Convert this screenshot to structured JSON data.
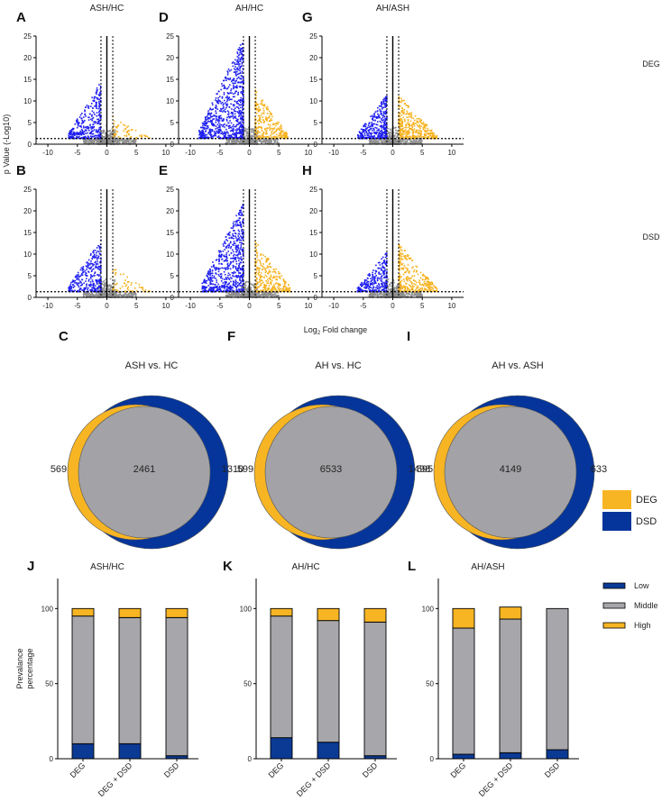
{
  "figure": {
    "volcano_ylabel": "p Value (-Log10)",
    "volcano_xlabel_prefix": "Log",
    "volcano_xlabel_sub": "2",
    "volcano_xlabel_suffix": " Fold change",
    "row_labels": [
      "DEG",
      "DSD"
    ]
  },
  "colors": {
    "down": "#1f1ff0",
    "up": "#f6b21e",
    "ns": "#8f8f8f",
    "venn_deg": "#f8b523",
    "venn_dsd": "#05359a",
    "venn_overlap": "#a3a2a6",
    "bar_low": "#0b3a94",
    "bar_mid": "#a7a6aa",
    "bar_high": "#f8b523"
  },
  "chart_data": [
    {
      "type": "scatter",
      "panel": "A",
      "title": "ASH/HC",
      "row": "DEG",
      "xlim": [
        -12,
        12
      ],
      "ylim": [
        0,
        25
      ],
      "xticks": [
        -10,
        -5,
        0,
        5,
        10
      ],
      "yticks": [
        0,
        5,
        10,
        15,
        20,
        25
      ],
      "fc_cut": [
        -1,
        1
      ],
      "p_cut": 1.3,
      "down": {
        "count": 1400,
        "xmin": -6.5,
        "ymax": 14
      },
      "up": {
        "count": 260,
        "xmax": 7.5,
        "ymax": 6
      }
    },
    {
      "type": "scatter",
      "panel": "D",
      "title": "AH/HC",
      "row": "DEG",
      "xlim": [
        -12,
        12
      ],
      "ylim": [
        0,
        25
      ],
      "xticks": [
        -10,
        -5,
        0,
        5,
        10
      ],
      "yticks": [
        0,
        5,
        10,
        15,
        20,
        25
      ],
      "fc_cut": [
        -1,
        1
      ],
      "p_cut": 1.3,
      "down": {
        "count": 3200,
        "xmin": -8.5,
        "ymax": 24
      },
      "up": {
        "count": 1100,
        "xmax": 6.5,
        "ymax": 12
      }
    },
    {
      "type": "scatter",
      "panel": "G",
      "title": "AH/ASH",
      "row": "DEG",
      "xlim": [
        -12,
        12
      ],
      "ylim": [
        0,
        25
      ],
      "xticks": [
        -10,
        -5,
        0,
        5,
        10
      ],
      "yticks": [
        0,
        5,
        10,
        15,
        20,
        25
      ],
      "fc_cut": [
        -1,
        1
      ],
      "p_cut": 1.3,
      "down": {
        "count": 1400,
        "xmin": -6,
        "ymax": 11
      },
      "up": {
        "count": 1500,
        "xmax": 7.5,
        "ymax": 11
      }
    },
    {
      "type": "scatter",
      "panel": "B",
      "title": "",
      "row": "DSD",
      "xlim": [
        -12,
        12
      ],
      "ylim": [
        0,
        25
      ],
      "xticks": [
        -10,
        -5,
        0,
        5,
        10
      ],
      "yticks": [
        0,
        5,
        10,
        15,
        20,
        25
      ],
      "fc_cut": [
        -1,
        1
      ],
      "p_cut": 1.3,
      "down": {
        "count": 1300,
        "xmin": -6.5,
        "ymax": 13
      },
      "up": {
        "count": 230,
        "xmax": 7.5,
        "ymax": 6.5
      }
    },
    {
      "type": "scatter",
      "panel": "E",
      "title": "",
      "row": "DSD",
      "xlim": [
        -12,
        12
      ],
      "ylim": [
        0,
        25
      ],
      "xticks": [
        -10,
        -5,
        0,
        5,
        10
      ],
      "yticks": [
        0,
        5,
        10,
        15,
        20,
        25
      ],
      "fc_cut": [
        -1,
        1
      ],
      "p_cut": 1.3,
      "down": {
        "count": 2600,
        "xmin": -8,
        "ymax": 22
      },
      "up": {
        "count": 1150,
        "xmax": 7,
        "ymax": 12.5
      }
    },
    {
      "type": "scatter",
      "panel": "H",
      "title": "",
      "row": "DSD",
      "xlim": [
        -12,
        12
      ],
      "ylim": [
        0,
        25
      ],
      "xticks": [
        -10,
        -5,
        0,
        5,
        10
      ],
      "yticks": [
        0,
        5,
        10,
        15,
        20,
        25
      ],
      "fc_cut": [
        -1,
        1
      ],
      "p_cut": 1.3,
      "down": {
        "count": 1100,
        "xmin": -6,
        "ymax": 10
      },
      "up": {
        "count": 1300,
        "xmax": 7.5,
        "ymax": 12
      }
    },
    {
      "type": "venn",
      "panel": "C",
      "title": "ASH vs. HC",
      "deg_only": 569,
      "overlap": 2461,
      "dsd_only": 1310
    },
    {
      "type": "venn",
      "panel": "F",
      "title": "AH vs. HC",
      "deg_only": 599,
      "overlap": 6533,
      "dsd_only": 1498
    },
    {
      "type": "venn",
      "panel": "I",
      "title": "AH vs. ASH",
      "deg_only": 595,
      "overlap": 4149,
      "dsd_only": 633
    },
    {
      "type": "bar",
      "stacked": true,
      "panel": "J",
      "title": "ASH/HC",
      "ylabel": "Prevalance percentage",
      "ylim": [
        0,
        120
      ],
      "yticks": [
        0,
        50,
        100
      ],
      "categories": [
        "DEG",
        "DEG + DSD",
        "DSD"
      ],
      "series": [
        {
          "name": "Low",
          "values": [
            10,
            10,
            2
          ]
        },
        {
          "name": "Middle",
          "values": [
            85,
            84,
            92
          ]
        },
        {
          "name": "High",
          "values": [
            5,
            6,
            6
          ]
        }
      ]
    },
    {
      "type": "bar",
      "stacked": true,
      "panel": "K",
      "title": "AH/HC",
      "ylabel": "",
      "ylim": [
        0,
        120
      ],
      "yticks": [
        0,
        50,
        100
      ],
      "categories": [
        "DEG",
        "DEG + DSD",
        "DSD"
      ],
      "series": [
        {
          "name": "Low",
          "values": [
            14,
            11,
            2
          ]
        },
        {
          "name": "Middle",
          "values": [
            81,
            81,
            89
          ]
        },
        {
          "name": "High",
          "values": [
            5,
            8,
            9
          ]
        }
      ]
    },
    {
      "type": "bar",
      "stacked": true,
      "panel": "L",
      "title": "AH/ASH",
      "ylabel": "",
      "ylim": [
        0,
        120
      ],
      "yticks": [
        0,
        50,
        100
      ],
      "categories": [
        "DEG",
        "DEG + DSD",
        "DSD"
      ],
      "series": [
        {
          "name": "Low",
          "values": [
            3,
            4,
            6
          ]
        },
        {
          "name": "Middle",
          "values": [
            84,
            89,
            94
          ]
        },
        {
          "name": "High",
          "values": [
            13,
            8,
            0
          ]
        }
      ]
    }
  ],
  "venn_legend": [
    "DEG",
    "DSD"
  ],
  "bar_legend": [
    "Low",
    "Middle",
    "High"
  ]
}
